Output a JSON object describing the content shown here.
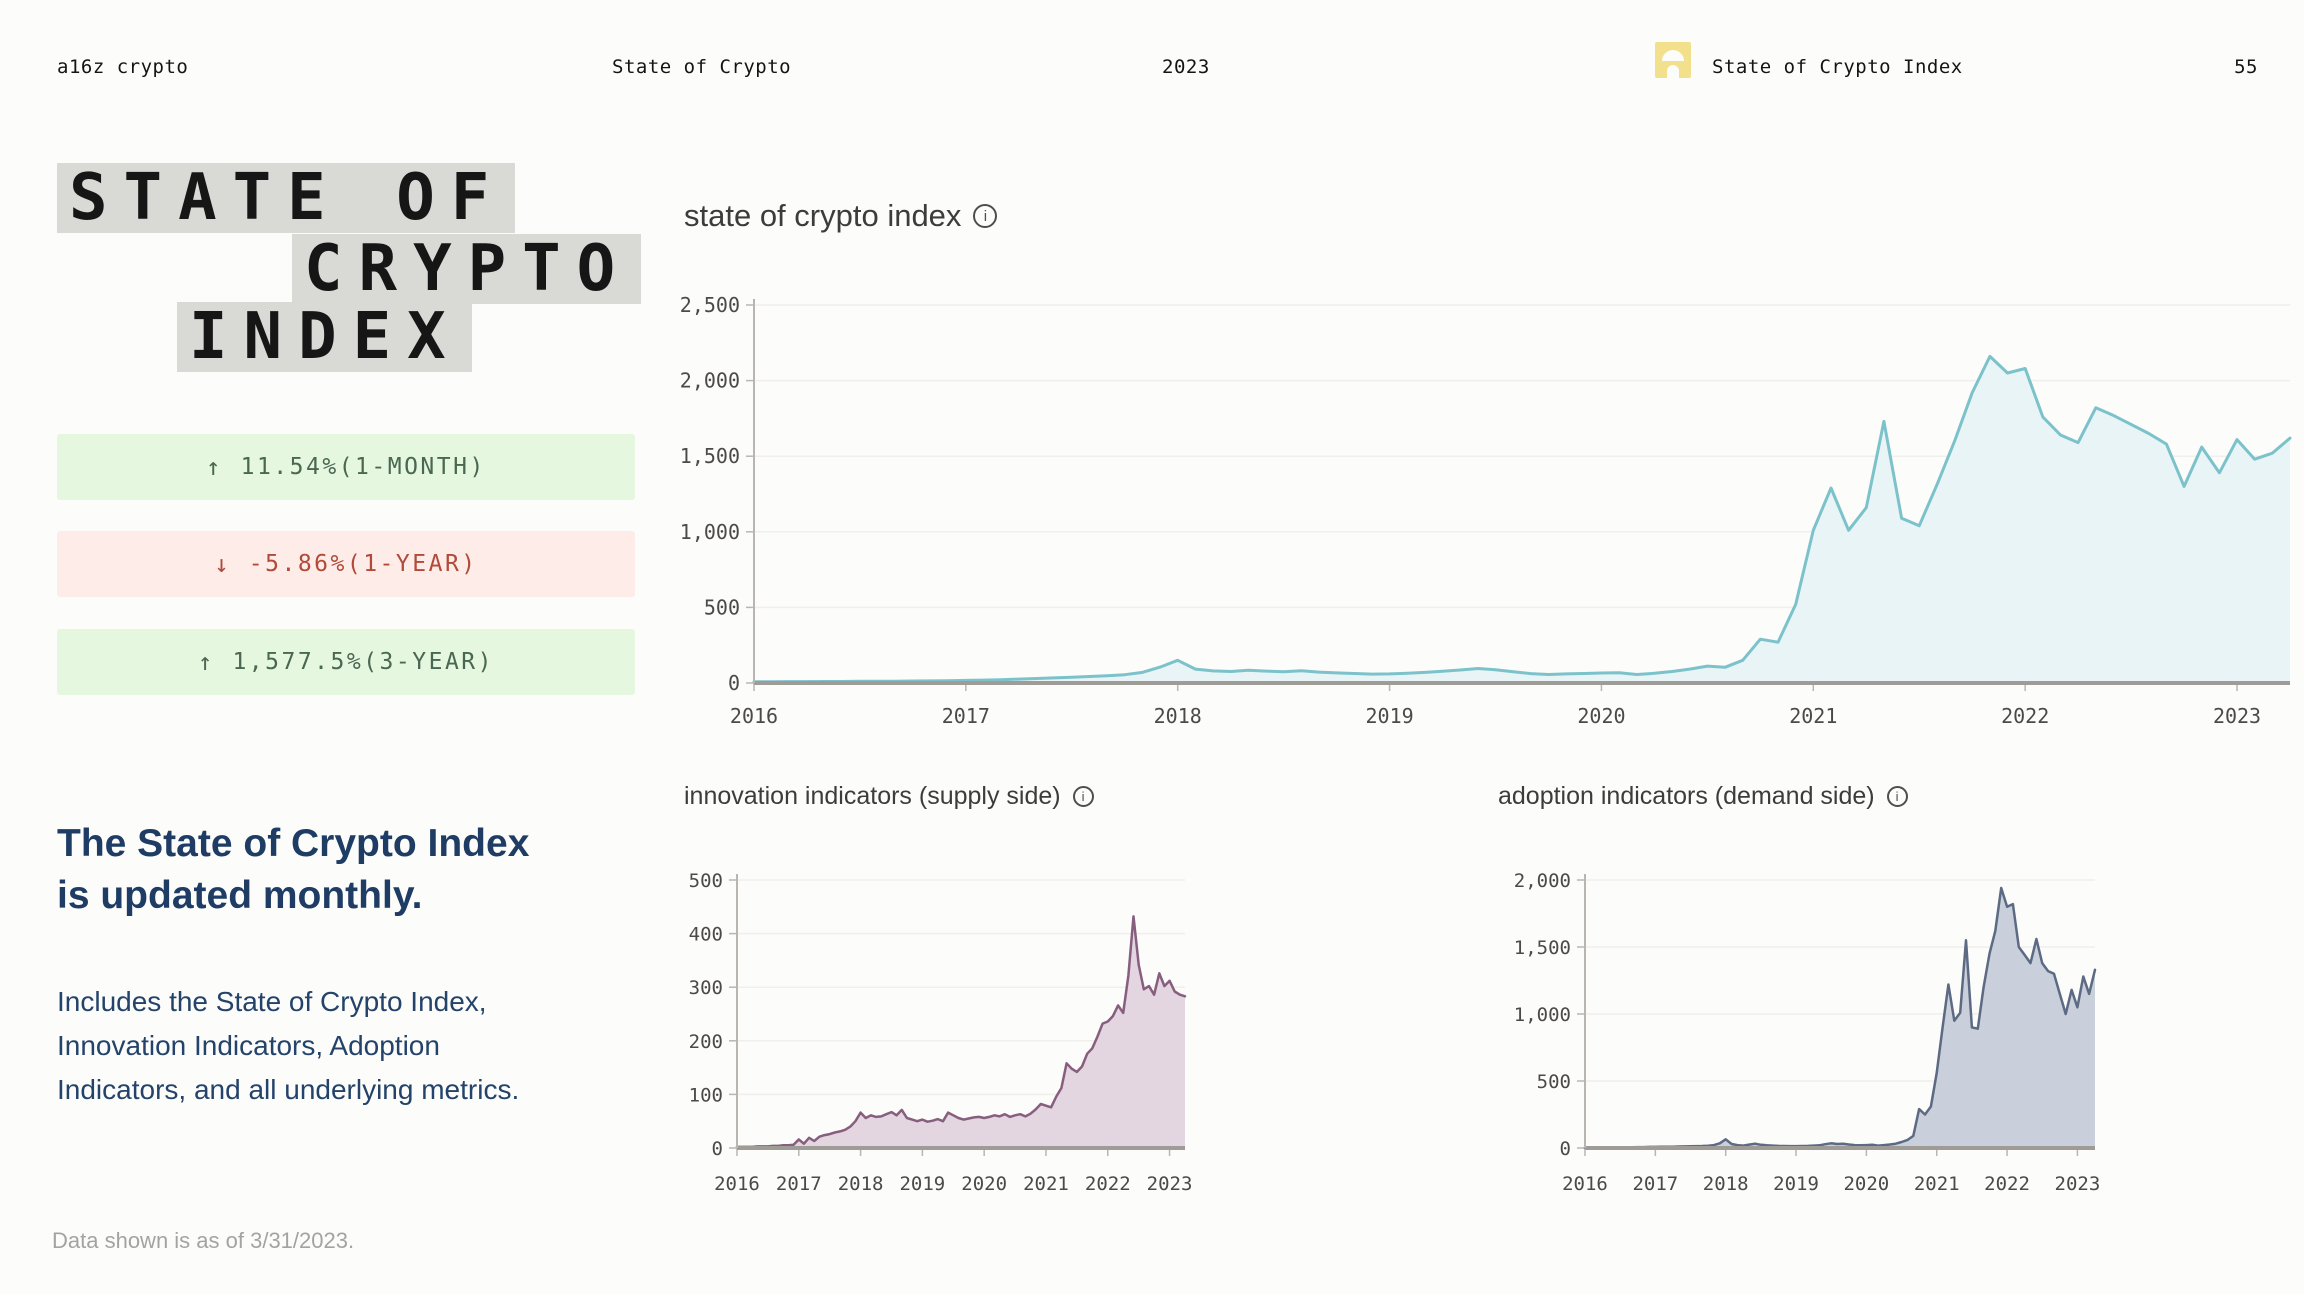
{
  "header": {
    "brand": "a16z crypto",
    "report": "State of Crypto",
    "year": "2023",
    "section": "State of Crypto Index",
    "page_number": "55",
    "logo_color": "#f2e08c"
  },
  "logo": {
    "line1": "STATE OF",
    "line2": "CRYPTO",
    "line3": "INDEX"
  },
  "stats": [
    {
      "arrow": "↑",
      "text": "11.54%(1-MONTH)",
      "direction": "up"
    },
    {
      "arrow": "↓",
      "text": "-5.86%(1-YEAR)",
      "direction": "down"
    },
    {
      "arrow": "↑",
      "text": "1,577.5%(3-YEAR)",
      "direction": "up"
    }
  ],
  "description": {
    "heading_lines": [
      "The State of Crypto Index",
      "is updated monthly."
    ],
    "body_lines": [
      "Includes the State of Crypto Index,",
      "Innovation Indicators, Adoption",
      "Indicators, and all underlying metrics."
    ]
  },
  "footnote": "Data shown is as of 3/31/2023.",
  "colors": {
    "background": "#fcfcfa",
    "logo_block": "#d9d9d6",
    "badge_up_bg": "#e6f7e0",
    "badge_up_text": "#4a6751",
    "badge_down_bg": "#fdece8",
    "badge_down_text": "#b24a39",
    "navy_text": "#1e3c64",
    "gridline": "#f1efec",
    "axis": "#b9b6b2",
    "baseline": "#9f9c98"
  },
  "chart_data": [
    {
      "id": "index",
      "type": "area",
      "title": "state of crypto index",
      "line_color": "#7bc2cb",
      "fill_color": "#e9f4f6",
      "ylim": [
        0,
        2500
      ],
      "yticks": [
        0,
        500,
        1000,
        1500,
        2000,
        2500
      ],
      "ytick_labels": [
        "0",
        "500",
        "1,000",
        "1,500",
        "2,000",
        "2,500"
      ],
      "xticks": [
        2016,
        2017,
        2018,
        2019,
        2020,
        2021,
        2022,
        2023
      ],
      "x_start": 2016,
      "points_per_year": 12,
      "legend": "none",
      "grid": true,
      "values": [
        8,
        8,
        9,
        9,
        10,
        10,
        11,
        11,
        12,
        13,
        14,
        15,
        17,
        19,
        22,
        26,
        30,
        34,
        38,
        43,
        48,
        55,
        70,
        105,
        150,
        92,
        80,
        76,
        84,
        79,
        74,
        81,
        72,
        67,
        63,
        59,
        60,
        64,
        70,
        78,
        86,
        96,
        88,
        74,
        62,
        56,
        60,
        63,
        66,
        68,
        56,
        64,
        76,
        92,
        112,
        104,
        150,
        290,
        270,
        520,
        1010,
        1290,
        1010,
        1160,
        1730,
        1090,
        1040,
        1310,
        1600,
        1920,
        2160,
        2050,
        2080,
        1760,
        1640,
        1590,
        1820,
        1770,
        1710,
        1650,
        1580,
        1300,
        1560,
        1390,
        1610,
        1480,
        1520,
        1620
      ]
    },
    {
      "id": "innovation",
      "type": "area",
      "title": "innovation indicators (supply side)",
      "line_color": "#875e7e",
      "fill_color": "#e4d6e1",
      "ylim": [
        0,
        500
      ],
      "yticks": [
        0,
        100,
        200,
        300,
        400,
        500
      ],
      "ytick_labels": [
        "0",
        "100",
        "200",
        "300",
        "400",
        "500"
      ],
      "xticks": [
        2016,
        2017,
        2018,
        2019,
        2020,
        2021,
        2022,
        2023
      ],
      "x_start": 2016,
      "points_per_year": 12,
      "legend": "none",
      "grid": true,
      "values": [
        2,
        2,
        2,
        2,
        3,
        3,
        3,
        4,
        4,
        5,
        5,
        6,
        16,
        8,
        19,
        13,
        21,
        24,
        26,
        29,
        31,
        34,
        40,
        50,
        66,
        56,
        61,
        58,
        59,
        63,
        67,
        61,
        71,
        56,
        53,
        50,
        53,
        49,
        51,
        54,
        50,
        66,
        61,
        56,
        53,
        55,
        57,
        58,
        56,
        58,
        61,
        59,
        63,
        58,
        61,
        63,
        59,
        64,
        72,
        82,
        79,
        76,
        96,
        112,
        158,
        148,
        142,
        152,
        176,
        186,
        208,
        232,
        236,
        246,
        266,
        252,
        322,
        432,
        342,
        296,
        302,
        286,
        326,
        302,
        312,
        292,
        286,
        283
      ]
    },
    {
      "id": "adoption",
      "type": "area",
      "title": "adoption indicators (demand side)",
      "line_color": "#5c6a83",
      "fill_color": "#cad0db",
      "ylim": [
        0,
        2000
      ],
      "yticks": [
        0,
        500,
        1000,
        1500,
        2000
      ],
      "ytick_labels": [
        "0",
        "500",
        "1,000",
        "1,500",
        "2,000"
      ],
      "xticks": [
        2016,
        2017,
        2018,
        2019,
        2020,
        2021,
        2022,
        2023
      ],
      "x_start": 2016,
      "points_per_year": 12,
      "legend": "none",
      "grid": true,
      "values": [
        4,
        4,
        4,
        5,
        5,
        5,
        6,
        6,
        6,
        7,
        7,
        8,
        8,
        9,
        9,
        10,
        11,
        12,
        13,
        14,
        15,
        17,
        22,
        35,
        65,
        30,
        22,
        18,
        25,
        32,
        24,
        20,
        18,
        16,
        15,
        14,
        14,
        15,
        16,
        18,
        20,
        28,
        35,
        30,
        32,
        26,
        22,
        20,
        22,
        24,
        18,
        22,
        26,
        32,
        45,
        60,
        90,
        290,
        250,
        310,
        560,
        900,
        1220,
        950,
        1010,
        1550,
        900,
        890,
        1200,
        1450,
        1620,
        1940,
        1800,
        1820,
        1500,
        1440,
        1380,
        1560,
        1380,
        1320,
        1300,
        1150,
        1000,
        1180,
        1050,
        1280,
        1150,
        1330
      ]
    }
  ]
}
